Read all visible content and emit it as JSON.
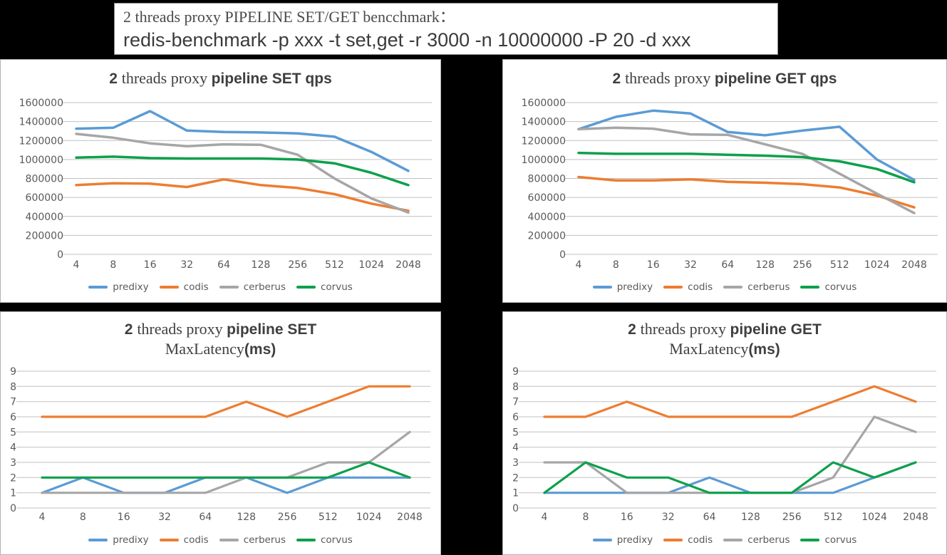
{
  "header": {
    "line1": "2 threads proxy PIPELINE SET/GET bencchmark：",
    "line2": "redis-benchmark -p xxx -t set,get -r 3000 -n 10000000 -P 20 -d xxx"
  },
  "palette": {
    "predixy": "#5B9BD5",
    "codis": "#ED7D31",
    "cerberus": "#A6A6A6",
    "corvus": "#0DA04C",
    "grid": "#C0C0C0",
    "axis_text": "#595959",
    "title_text": "#3F3F3F"
  },
  "legend_entries": [
    "predixy",
    "codis",
    "cerberus",
    "corvus"
  ],
  "chart_data": [
    {
      "id": "set-qps",
      "kind": "qps",
      "type": "line",
      "title": "2 threads proxy pipeline SET qps",
      "title_lines": [
        [
          {
            "text": "2 ",
            "font": "bold-sans"
          },
          {
            "text": "threads proxy ",
            "font": "serif"
          },
          {
            "text": "pipeline SET qps",
            "font": "bold-sans"
          }
        ]
      ],
      "categories": [
        "4",
        "8",
        "16",
        "32",
        "64",
        "128",
        "256",
        "512",
        "1024",
        "2048"
      ],
      "ylim": [
        0,
        1600000
      ],
      "y_ticks": [
        1600000,
        1400000,
        1200000,
        1000000,
        800000,
        600000,
        400000,
        200000,
        0
      ],
      "grid": true,
      "legend_position": "bottom",
      "series": [
        {
          "name": "predixy",
          "values": [
            1325000,
            1335000,
            1510000,
            1305000,
            1290000,
            1285000,
            1275000,
            1240000,
            1080000,
            880000
          ]
        },
        {
          "name": "codis",
          "values": [
            730000,
            750000,
            745000,
            710000,
            790000,
            730000,
            700000,
            635000,
            535000,
            460000
          ]
        },
        {
          "name": "cerberus",
          "values": [
            1270000,
            1230000,
            1170000,
            1140000,
            1160000,
            1155000,
            1050000,
            800000,
            590000,
            440000
          ]
        },
        {
          "name": "corvus",
          "values": [
            1020000,
            1030000,
            1015000,
            1010000,
            1010000,
            1010000,
            1000000,
            960000,
            860000,
            730000
          ]
        }
      ]
    },
    {
      "id": "get-qps",
      "kind": "qps",
      "type": "line",
      "title": "2 threads proxy pipeline GET qps",
      "title_lines": [
        [
          {
            "text": "2 ",
            "font": "bold-sans"
          },
          {
            "text": "threads proxy ",
            "font": "serif"
          },
          {
            "text": "pipeline GET qps",
            "font": "bold-sans"
          }
        ]
      ],
      "categories": [
        "4",
        "8",
        "16",
        "32",
        "64",
        "128",
        "256",
        "512",
        "1024",
        "2048"
      ],
      "ylim": [
        0,
        1600000
      ],
      "y_ticks": [
        1600000,
        1400000,
        1200000,
        1000000,
        800000,
        600000,
        400000,
        200000,
        0
      ],
      "grid": true,
      "legend_position": "bottom",
      "series": [
        {
          "name": "predixy",
          "values": [
            1320000,
            1450000,
            1515000,
            1485000,
            1290000,
            1255000,
            1305000,
            1345000,
            1000000,
            785000
          ]
        },
        {
          "name": "codis",
          "values": [
            815000,
            780000,
            780000,
            790000,
            765000,
            755000,
            740000,
            705000,
            620000,
            495000
          ]
        },
        {
          "name": "cerberus",
          "values": [
            1320000,
            1335000,
            1325000,
            1265000,
            1260000,
            1160000,
            1060000,
            850000,
            640000,
            435000
          ]
        },
        {
          "name": "corvus",
          "values": [
            1070000,
            1060000,
            1060000,
            1060000,
            1050000,
            1040000,
            1025000,
            980000,
            900000,
            760000
          ]
        }
      ]
    },
    {
      "id": "set-lat",
      "kind": "lat",
      "type": "line",
      "title": "2 threads proxy pipeline SET MaxLatency(ms)",
      "title_lines": [
        [
          {
            "text": "2 ",
            "font": "bold-sans"
          },
          {
            "text": "threads proxy ",
            "font": "serif"
          },
          {
            "text": "pipeline SET",
            "font": "bold-sans"
          }
        ],
        [
          {
            "text": "MaxLatency",
            "font": "serif"
          },
          {
            "text": "(ms)",
            "font": "bold-sans"
          }
        ]
      ],
      "categories": [
        "4",
        "8",
        "16",
        "32",
        "64",
        "128",
        "256",
        "512",
        "1024",
        "2048"
      ],
      "ylim": [
        0,
        9
      ],
      "y_ticks": [
        9,
        8,
        7,
        6,
        5,
        4,
        3,
        2,
        1,
        0
      ],
      "grid": true,
      "legend_position": "bottom",
      "series": [
        {
          "name": "predixy",
          "values": [
            1,
            2,
            1,
            1,
            2,
            2,
            1,
            2,
            2,
            2
          ]
        },
        {
          "name": "codis",
          "values": [
            6,
            6,
            6,
            6,
            6,
            7,
            6,
            7,
            8,
            8
          ]
        },
        {
          "name": "cerberus",
          "values": [
            1,
            1,
            1,
            1,
            1,
            2,
            2,
            3,
            3,
            5
          ]
        },
        {
          "name": "corvus",
          "values": [
            2,
            2,
            2,
            2,
            2,
            2,
            2,
            2,
            3,
            2
          ]
        }
      ]
    },
    {
      "id": "get-lat",
      "kind": "lat",
      "type": "line",
      "title": "2 threads proxy pipeline GET MaxLatency(ms)",
      "title_lines": [
        [
          {
            "text": "2 ",
            "font": "bold-sans"
          },
          {
            "text": "threads proxy ",
            "font": "serif"
          },
          {
            "text": "pipeline GET",
            "font": "bold-sans"
          }
        ],
        [
          {
            "text": "MaxLatency",
            "font": "serif"
          },
          {
            "text": "(ms)",
            "font": "bold-sans"
          }
        ]
      ],
      "categories": [
        "4",
        "8",
        "16",
        "32",
        "64",
        "128",
        "256",
        "512",
        "1024",
        "2048"
      ],
      "ylim": [
        0,
        9
      ],
      "y_ticks": [
        9,
        8,
        7,
        6,
        5,
        4,
        3,
        2,
        1,
        0
      ],
      "grid": true,
      "legend_position": "bottom",
      "series": [
        {
          "name": "predixy",
          "values": [
            1,
            1,
            1,
            1,
            2,
            1,
            1,
            1,
            2,
            3
          ]
        },
        {
          "name": "codis",
          "values": [
            6,
            6,
            7,
            6,
            6,
            6,
            6,
            7,
            8,
            7
          ]
        },
        {
          "name": "cerberus",
          "values": [
            3,
            3,
            1,
            1,
            1,
            1,
            1,
            2,
            6,
            5
          ]
        },
        {
          "name": "corvus",
          "values": [
            1,
            3,
            2,
            2,
            1,
            1,
            1,
            3,
            2,
            3
          ]
        }
      ]
    }
  ]
}
